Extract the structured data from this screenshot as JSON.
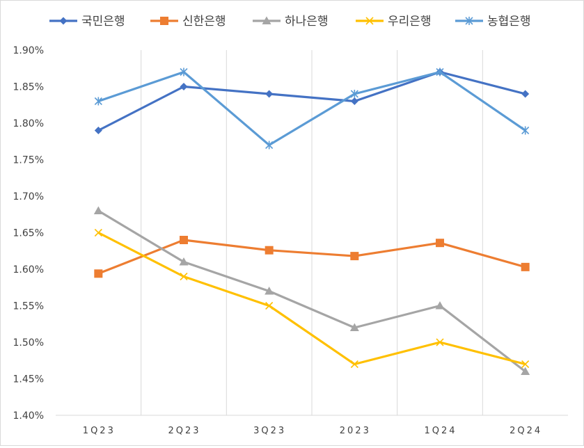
{
  "chart_data": {
    "type": "line",
    "categories": [
      "1Q23",
      "2Q23",
      "3Q23",
      "2023",
      "1Q24",
      "2Q24"
    ],
    "ylim": [
      1.4,
      1.9
    ],
    "ytick_values": [
      1.4,
      1.45,
      1.5,
      1.55,
      1.6,
      1.65,
      1.7,
      1.75,
      1.8,
      1.85,
      1.9
    ],
    "ytick_labels": [
      "1.40%",
      "1.45%",
      "1.50%",
      "1.55%",
      "1.60%",
      "1.65%",
      "1.70%",
      "1.75%",
      "1.80%",
      "1.85%",
      "1.90%"
    ],
    "grid": "vertical",
    "legend_position": "top",
    "series": [
      {
        "name": "국민은행",
        "color": "#4472c4",
        "marker": "diamond",
        "values": [
          1.79,
          1.85,
          1.84,
          1.83,
          1.87,
          1.84
        ]
      },
      {
        "name": "신한은행",
        "color": "#ed7d31",
        "marker": "square",
        "values": [
          1.594,
          1.64,
          1.626,
          1.618,
          1.636,
          1.603
        ]
      },
      {
        "name": "하나은행",
        "color": "#a5a5a5",
        "marker": "triangle",
        "values": [
          1.68,
          1.61,
          1.57,
          1.52,
          1.55,
          1.46
        ]
      },
      {
        "name": "우리은행",
        "color": "#ffc000",
        "marker": "x",
        "values": [
          1.65,
          1.59,
          1.55,
          1.47,
          1.5,
          1.47
        ]
      },
      {
        "name": "농협은행",
        "color": "#5b9bd5",
        "marker": "star",
        "values": [
          1.83,
          1.87,
          1.77,
          1.84,
          1.87,
          1.79
        ]
      }
    ]
  }
}
